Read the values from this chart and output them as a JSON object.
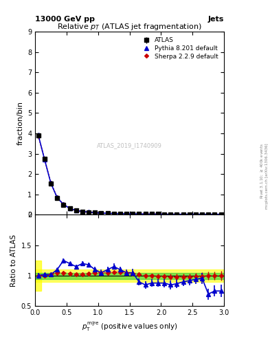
{
  "title": "Relative $p_{T}$ (ATLAS jet fragmentation)",
  "header_left": "13000 GeV pp",
  "header_right": "Jets",
  "xlabel": "$p_{\\mathrm{T}}^{\\mathrm{m|re}}$ (positive values only)",
  "ylabel_main": "fraction/bin",
  "ylabel_ratio": "Ratio to ATLAS",
  "watermark": "ATLAS_2019_I1740909",
  "xlim": [
    0,
    3
  ],
  "ylim_main": [
    0,
    9
  ],
  "ylim_ratio": [
    0.5,
    2.0
  ],
  "atlas_x": [
    0.05,
    0.15,
    0.25,
    0.35,
    0.45,
    0.55,
    0.65,
    0.75,
    0.85,
    0.95,
    1.05,
    1.15,
    1.25,
    1.35,
    1.45,
    1.55,
    1.65,
    1.75,
    1.85,
    1.95,
    2.05,
    2.15,
    2.25,
    2.35,
    2.45,
    2.55,
    2.65,
    2.75,
    2.85,
    2.95
  ],
  "atlas_y": [
    3.9,
    2.75,
    1.52,
    0.82,
    0.5,
    0.31,
    0.21,
    0.16,
    0.12,
    0.1,
    0.08,
    0.07,
    0.06,
    0.05,
    0.05,
    0.04,
    0.04,
    0.03,
    0.03,
    0.03,
    0.02,
    0.02,
    0.02,
    0.02,
    0.02,
    0.02,
    0.02,
    0.02,
    0.02,
    0.02
  ],
  "atlas_yerr": [
    0.1,
    0.07,
    0.04,
    0.02,
    0.01,
    0.01,
    0.005,
    0.004,
    0.003,
    0.003,
    0.002,
    0.002,
    0.002,
    0.002,
    0.002,
    0.001,
    0.001,
    0.001,
    0.001,
    0.001,
    0.001,
    0.001,
    0.001,
    0.001,
    0.001,
    0.001,
    0.001,
    0.001,
    0.001,
    0.001
  ],
  "pythia_y": [
    3.92,
    2.72,
    1.55,
    0.84,
    0.51,
    0.31,
    0.21,
    0.16,
    0.13,
    0.1,
    0.08,
    0.07,
    0.06,
    0.05,
    0.05,
    0.04,
    0.04,
    0.03,
    0.03,
    0.03,
    0.02,
    0.02,
    0.02,
    0.02,
    0.02,
    0.02,
    0.02,
    0.02,
    0.02,
    0.02
  ],
  "sherpa_y": [
    3.88,
    2.73,
    1.56,
    0.86,
    0.51,
    0.31,
    0.2,
    0.15,
    0.12,
    0.1,
    0.08,
    0.07,
    0.06,
    0.05,
    0.05,
    0.04,
    0.04,
    0.03,
    0.03,
    0.03,
    0.02,
    0.02,
    0.02,
    0.02,
    0.02,
    0.02,
    0.02,
    0.02,
    0.02,
    0.02
  ],
  "pythia_ratio": [
    1.005,
    1.02,
    1.02,
    1.1,
    1.25,
    1.2,
    1.15,
    1.2,
    1.18,
    1.1,
    1.05,
    1.1,
    1.15,
    1.1,
    1.05,
    1.05,
    0.9,
    0.85,
    0.88,
    0.88,
    0.88,
    0.85,
    0.87,
    0.9,
    0.92,
    0.94,
    0.96,
    0.7,
    0.75,
    0.75
  ],
  "pythia_ratio_err": [
    0.04,
    0.03,
    0.03,
    0.03,
    0.03,
    0.03,
    0.03,
    0.04,
    0.04,
    0.05,
    0.05,
    0.05,
    0.05,
    0.05,
    0.05,
    0.06,
    0.06,
    0.06,
    0.06,
    0.06,
    0.07,
    0.07,
    0.07,
    0.07,
    0.08,
    0.08,
    0.09,
    0.09,
    0.09,
    0.1
  ],
  "sherpa_ratio": [
    1.0,
    1.0,
    1.02,
    1.05,
    1.05,
    1.03,
    1.02,
    1.02,
    1.03,
    1.05,
    1.05,
    1.05,
    1.06,
    1.06,
    1.05,
    1.04,
    1.02,
    1.0,
    1.0,
    0.99,
    0.99,
    0.98,
    0.98,
    0.98,
    0.98,
    0.99,
    0.99,
    1.0,
    1.0,
    1.0
  ],
  "sherpa_ratio_err": [
    0.04,
    0.03,
    0.02,
    0.02,
    0.02,
    0.02,
    0.02,
    0.03,
    0.03,
    0.03,
    0.03,
    0.03,
    0.03,
    0.03,
    0.03,
    0.04,
    0.04,
    0.04,
    0.04,
    0.04,
    0.05,
    0.05,
    0.05,
    0.05,
    0.06,
    0.06,
    0.07,
    0.07,
    0.07,
    0.08
  ],
  "band_yellow_ylo": 0.9,
  "band_yellow_yhi": 1.1,
  "band_green_ylo": 0.95,
  "band_green_yhi": 1.05,
  "atlas_color": "#000000",
  "pythia_color": "#0000cc",
  "sherpa_color": "#cc0000",
  "background_color": "#ffffff"
}
